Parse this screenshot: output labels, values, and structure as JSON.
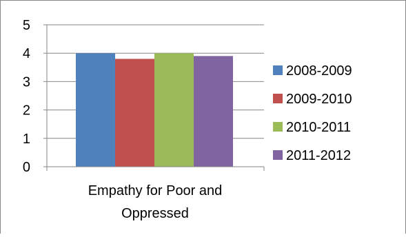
{
  "chart_data": {
    "type": "bar",
    "categories": [
      "Empathy for Poor and Oppressed"
    ],
    "category_label_lines": [
      "Empathy for Poor and",
      "Oppressed"
    ],
    "series": [
      {
        "name": "2008-2009",
        "values": [
          4.0
        ],
        "color": "#4F81BD"
      },
      {
        "name": "2009-2010",
        "values": [
          3.8
        ],
        "color": "#C0504D"
      },
      {
        "name": "2010-2011",
        "values": [
          4.0
        ],
        "color": "#9BBB59"
      },
      {
        "name": "2011-2012",
        "values": [
          3.9
        ],
        "color": "#8064A2"
      }
    ],
    "ylim": [
      0,
      5
    ],
    "yticks": [
      "0",
      "1",
      "2",
      "3",
      "4",
      "5"
    ],
    "grid": true,
    "legend_position": "right"
  }
}
